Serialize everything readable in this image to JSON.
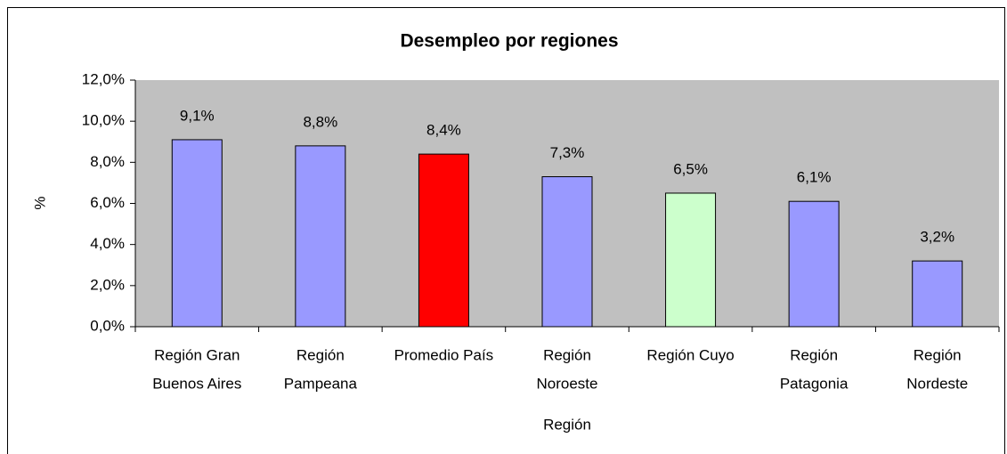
{
  "chart_data": {
    "type": "bar",
    "title": "Desempleo por regiones",
    "xlabel": "Región",
    "ylabel": "%",
    "categories": [
      [
        "Región Gran",
        "Buenos Aires"
      ],
      [
        "Región",
        "Pampeana"
      ],
      [
        "Promedio País"
      ],
      [
        "Región",
        "Noroeste"
      ],
      [
        "Región Cuyo"
      ],
      [
        "Región",
        "Patagonia"
      ],
      [
        "Región",
        "Nordeste"
      ]
    ],
    "values": [
      9.1,
      8.8,
      8.4,
      7.3,
      6.5,
      6.1,
      3.2
    ],
    "value_labels": [
      "9,1%",
      "8,8%",
      "8,4%",
      "7,3%",
      "6,5%",
      "6,1%",
      "3,2%"
    ],
    "colors": [
      "#9999ff",
      "#9999ff",
      "#ff0000",
      "#9999ff",
      "#ccffcc",
      "#9999ff",
      "#9999ff"
    ],
    "ylim": [
      0,
      12
    ],
    "yticks": [
      {
        "value": 0,
        "label": "0,0%"
      },
      {
        "value": 2,
        "label": "2,0%"
      },
      {
        "value": 4,
        "label": "4,0%"
      },
      {
        "value": 6,
        "label": "6,0%"
      },
      {
        "value": 8,
        "label": "8,0%"
      },
      {
        "value": 10,
        "label": "10,0%"
      },
      {
        "value": 12,
        "label": "12,0%"
      }
    ],
    "plot_background": "#c0c0c0",
    "grid": false
  }
}
